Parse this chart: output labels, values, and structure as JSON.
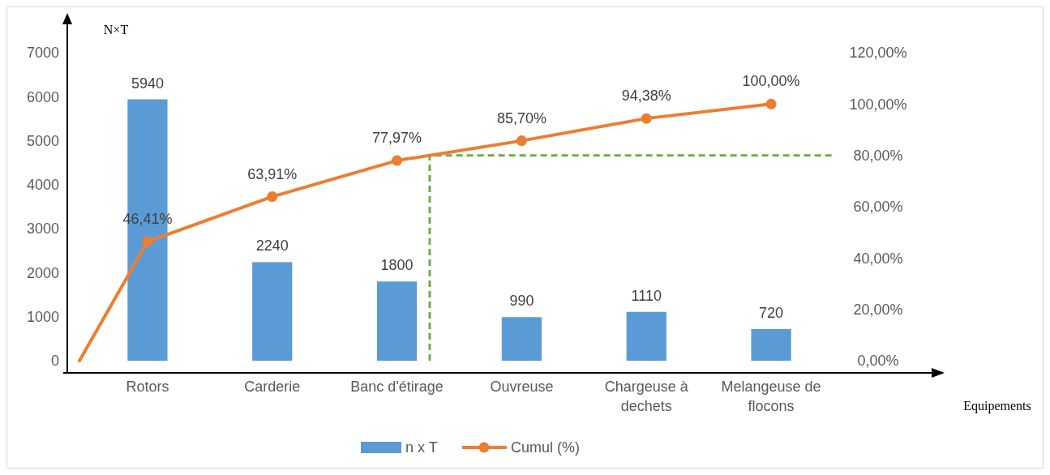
{
  "chart_data": {
    "type": "bar",
    "ylabel": "N×T",
    "xlabel": "Equipements",
    "categories": [
      "Rotors",
      "Carderie",
      "Banc d'étirage",
      "Ouvreuse",
      "Chargeuse à dechets",
      "Melangeuse de flocons"
    ],
    "series": [
      {
        "name": "n x T",
        "color": "#5b9bd5",
        "values": [
          5940,
          2240,
          1800,
          990,
          1110,
          720
        ],
        "data_labels": true
      },
      {
        "name": "Cumul (%)",
        "type": "line",
        "axis": "y2",
        "color": "#ed7d31",
        "marker": "circle",
        "values": [
          46.41,
          63.91,
          77.97,
          85.7,
          94.38,
          100
        ],
        "value_labels": [
          "46,41%",
          "63,91%",
          "77,97%",
          "85,70%",
          "94,38%",
          "100,00%"
        ]
      }
    ],
    "ylim": [
      0,
      7000
    ],
    "yticks": [
      0,
      1000,
      2000,
      3000,
      4000,
      5000,
      6000,
      7000
    ],
    "y2lim": [
      0,
      120
    ],
    "y2ticks": [
      {
        "value": 0,
        "label": "0,00%"
      },
      {
        "value": 20,
        "label": "20,00%"
      },
      {
        "value": 40,
        "label": "40,00%"
      },
      {
        "value": 60,
        "label": "60,00%"
      },
      {
        "value": 80,
        "label": "80,00%"
      },
      {
        "value": 100,
        "label": "100,00%"
      },
      {
        "value": 120,
        "label": "120,00%"
      }
    ],
    "ref_lines": [
      {
        "axis": "y2",
        "value": 80,
        "color": "#70ad47",
        "line_style": "dashed"
      }
    ],
    "grid": false,
    "legend": "bottom"
  }
}
